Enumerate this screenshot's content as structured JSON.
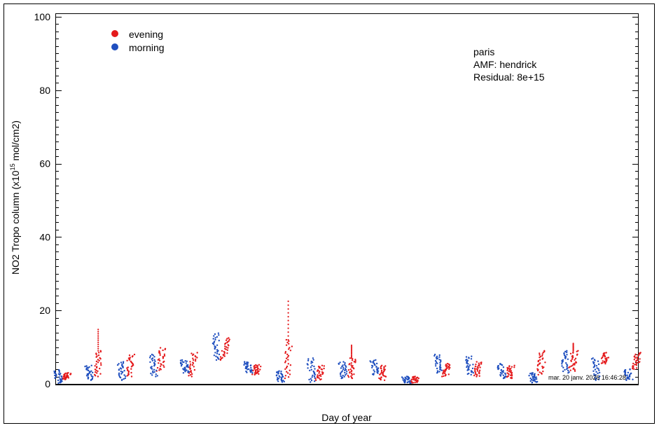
{
  "chart_data": {
    "type": "scatter",
    "title": "",
    "xlabel": "Day of year",
    "ylabel_main": "NO2 Tropo column (x10",
    "ylabel_sup": "15",
    "ylabel_unit": " mol/cm2)",
    "ylim": [
      0,
      100
    ],
    "yticks": [
      "0",
      "20",
      "40",
      "60",
      "80",
      "100"
    ],
    "ytick_values": [
      0,
      20,
      40,
      60,
      80,
      100
    ],
    "x_tick_labels_shown": false,
    "grid": false,
    "legend_position": "top-left",
    "annotation": {
      "lines": [
        "paris",
        "AMF: hendrick",
        "Residual: 8e+15"
      ],
      "position": "top-right"
    },
    "timestamp": "mar. 20 janv. 2026 16:46:28",
    "series": [
      {
        "name": "evening",
        "color": "#e41a1c",
        "clusters": [
          {
            "day": 1,
            "values": [
              1.2,
              3.0
            ]
          },
          {
            "day": 2,
            "values": [
              2.0,
              9.0,
              14.8
            ]
          },
          {
            "day": 3,
            "values": [
              2.0,
              8.0
            ]
          },
          {
            "day": 4,
            "values": [
              3.5,
              9.8
            ]
          },
          {
            "day": 5,
            "values": [
              2.0,
              8.5
            ]
          },
          {
            "day": 6,
            "values": [
              6.5,
              12.5
            ]
          },
          {
            "day": 7,
            "values": [
              2.5,
              5.2
            ]
          },
          {
            "day": 8,
            "values": [
              1.5,
              12.0,
              22.5
            ]
          },
          {
            "day": 9,
            "values": [
              1.0,
              5.0
            ]
          },
          {
            "day": 10,
            "values": [
              1.5,
              7.0,
              10.5
            ]
          },
          {
            "day": 11,
            "values": [
              1.0,
              5.0
            ]
          },
          {
            "day": 12,
            "values": [
              0.2,
              2.0
            ]
          },
          {
            "day": 13,
            "values": [
              2.0,
              5.5
            ]
          },
          {
            "day": 14,
            "values": [
              2.0,
              6.0
            ]
          },
          {
            "day": 15,
            "values": [
              1.5,
              5.0
            ]
          },
          {
            "day": 16,
            "values": [
              2.5,
              9.0
            ]
          },
          {
            "day": 17,
            "values": [
              3.5,
              9.0,
              11.0
            ]
          },
          {
            "day": 18,
            "values": [
              5.5,
              8.5
            ]
          },
          {
            "day": 19,
            "values": [
              4.0,
              8.5
            ]
          }
        ]
      },
      {
        "name": "morning",
        "color": "#1f4fbf",
        "clusters": [
          {
            "day": 1,
            "values": [
              0.2,
              3.8
            ]
          },
          {
            "day": 2,
            "values": [
              1.0,
              5.0
            ]
          },
          {
            "day": 3,
            "values": [
              1.0,
              6.0
            ]
          },
          {
            "day": 4,
            "values": [
              2.0,
              8.0
            ]
          },
          {
            "day": 5,
            "values": [
              3.0,
              6.5
            ]
          },
          {
            "day": 6,
            "values": [
              6.5,
              13.8
            ]
          },
          {
            "day": 7,
            "values": [
              3.0,
              6.0
            ]
          },
          {
            "day": 8,
            "values": [
              0.5,
              3.5
            ]
          },
          {
            "day": 9,
            "values": [
              0.5,
              7.0
            ]
          },
          {
            "day": 10,
            "values": [
              1.5,
              6.0
            ]
          },
          {
            "day": 11,
            "values": [
              2.5,
              6.5
            ]
          },
          {
            "day": 12,
            "values": [
              0.2,
              2.0
            ]
          },
          {
            "day": 13,
            "values": [
              3.0,
              8.0
            ]
          },
          {
            "day": 14,
            "values": [
              2.5,
              7.5
            ]
          },
          {
            "day": 15,
            "values": [
              1.5,
              5.5
            ]
          },
          {
            "day": 16,
            "values": [
              0.3,
              3.0
            ]
          },
          {
            "day": 17,
            "values": [
              3.0,
              9.0
            ]
          },
          {
            "day": 18,
            "values": [
              1.0,
              7.0
            ]
          },
          {
            "day": 19,
            "values": [
              1.0,
              4.0
            ]
          }
        ]
      }
    ]
  }
}
